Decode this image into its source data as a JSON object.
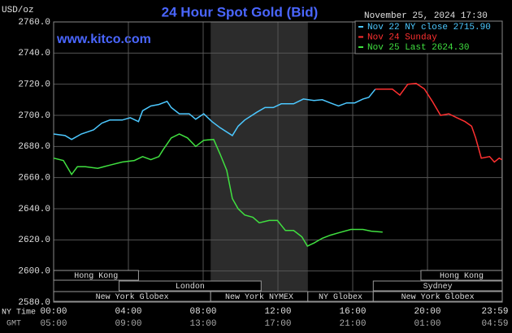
{
  "chart_data": {
    "type": "line",
    "title": "24 Hour Spot Gold (Bid)",
    "unit_label": "USD/oz",
    "website": "www.kitco.com",
    "timestamp": "November 25, 2024 17:30",
    "xlim": [
      0,
      24
    ],
    "ylim": [
      2580,
      2760
    ],
    "yticks": [
      {
        "value": 2580,
        "label": "2580.0"
      },
      {
        "value": 2600,
        "label": "2600.0"
      },
      {
        "value": 2620,
        "label": "2620.0"
      },
      {
        "value": 2640,
        "label": "2640.0"
      },
      {
        "value": 2660,
        "label": "2660.0"
      },
      {
        "value": 2680,
        "label": "2680.0"
      },
      {
        "value": 2700,
        "label": "2700.0"
      },
      {
        "value": 2720,
        "label": "2720.0"
      },
      {
        "value": 2740,
        "label": "2740.0"
      },
      {
        "value": 2760,
        "label": "2760.0"
      }
    ],
    "x_axis_label": "NY Time",
    "xticks": [
      {
        "value": 0,
        "label": "00:00"
      },
      {
        "value": 4,
        "label": "04:00"
      },
      {
        "value": 8,
        "label": "08:00"
      },
      {
        "value": 12,
        "label": "12:00"
      },
      {
        "value": 16,
        "label": "16:00"
      },
      {
        "value": 20,
        "label": "20:00"
      },
      {
        "value": 23.98,
        "label": "23:59"
      }
    ],
    "x2_axis_label": "GMT",
    "x2ticks": [
      {
        "value": 0,
        "label": "05:00"
      },
      {
        "value": 4,
        "label": "09:00"
      },
      {
        "value": 8,
        "label": "13:00"
      },
      {
        "value": 12,
        "label": "17:00"
      },
      {
        "value": 16,
        "label": "21:00"
      },
      {
        "value": 20,
        "label": "01:00"
      },
      {
        "value": 23.98,
        "label": "04:59"
      }
    ],
    "grid": true,
    "shaded_range": [
      8.4,
      13.6
    ],
    "sessions": [
      {
        "name": "Hong Kong",
        "start": 0,
        "end": 4.54,
        "row": 0
      },
      {
        "name": "Hong Kong",
        "start": 19.65,
        "end": 24,
        "row": 0
      },
      {
        "name": "London",
        "start": 3.5,
        "end": 11.1,
        "row": 1
      },
      {
        "name": "Sydney",
        "start": 17.1,
        "end": 24,
        "row": 1
      },
      {
        "name": "New York Globex",
        "start": 0,
        "end": 8.4,
        "row": 2
      },
      {
        "name": "New York NYMEX",
        "start": 8.4,
        "end": 13.6,
        "row": 2
      },
      {
        "name": "NY Globex",
        "start": 13.6,
        "end": 17.1,
        "row": 2
      },
      {
        "name": "New York Globex",
        "start": 17.1,
        "end": 24,
        "row": 2
      }
    ],
    "series": [
      {
        "name": "Nov 22 NY close 2715.90",
        "color": "#4cc8ff",
        "x": [
          0,
          0.61,
          0.96,
          1.48,
          2.14,
          2.58,
          3.01,
          3.67,
          4.1,
          4.54,
          4.76,
          5.2,
          5.63,
          6.07,
          6.29,
          6.72,
          7.25,
          7.6,
          8.03,
          8.47,
          8.91,
          9.56,
          9.87,
          10.22,
          10.87,
          11.31,
          11.75,
          12.18,
          12.84,
          13.36,
          13.93,
          14.37,
          14.8,
          15.24,
          15.68,
          16.11,
          16.55,
          16.86,
          17.21
        ],
        "values": [
          2688,
          2687,
          2684.5,
          2688,
          2690.7,
          2695,
          2697,
          2697,
          2698.5,
          2696,
          2703,
          2706,
          2707,
          2709,
          2705,
          2701,
          2701,
          2697.5,
          2701,
          2696,
          2692,
          2687,
          2693,
          2697,
          2702,
          2705,
          2705,
          2707.4,
          2707.4,
          2710.5,
          2709.5,
          2710,
          2708,
          2706,
          2708,
          2708,
          2710.5,
          2711.6,
          2716.8
        ]
      },
      {
        "name": "Nov 24 Sunday",
        "color": "#ff3030",
        "x": [
          17.21,
          18.12,
          18.52,
          18.95,
          19.39,
          19.83,
          20.26,
          20.7,
          21.14,
          21.57,
          22.01,
          22.36,
          22.58,
          22.88,
          23.32,
          23.58,
          23.84,
          23.98
        ],
        "values": [
          2716.8,
          2716.8,
          2713,
          2720,
          2720.5,
          2717,
          2709,
          2700,
          2701,
          2698.5,
          2696,
          2693,
          2685.5,
          2672.5,
          2673.5,
          2670,
          2672.5,
          2671.5
        ]
      },
      {
        "name": "Nov 25 Last 2624.30",
        "color": "#40e040",
        "x": [
          0,
          0.52,
          0.96,
          1.27,
          1.7,
          2.36,
          3.01,
          3.67,
          4.32,
          4.76,
          5.2,
          5.63,
          5.85,
          6.29,
          6.72,
          7.16,
          7.6,
          8.03,
          8.56,
          8.91,
          9.26,
          9.56,
          9.87,
          10.22,
          10.66,
          11.0,
          11.53,
          11.97,
          12.4,
          12.84,
          13.28,
          13.58,
          13.93,
          14.37,
          14.8,
          15.24,
          15.9,
          16.55,
          16.99,
          17.6
        ],
        "values": [
          2672.5,
          2671,
          2662,
          2667,
          2667,
          2666,
          2668,
          2670,
          2671,
          2673.5,
          2671.5,
          2673.5,
          2677.7,
          2685.5,
          2688,
          2685.5,
          2680,
          2684,
          2684.5,
          2675,
          2664.7,
          2646.5,
          2640,
          2636,
          2634.5,
          2631,
          2632.5,
          2632.5,
          2626,
          2626,
          2622,
          2616,
          2618,
          2621,
          2623,
          2624.5,
          2626.7,
          2626.7,
          2625.6,
          2625
        ]
      }
    ]
  }
}
